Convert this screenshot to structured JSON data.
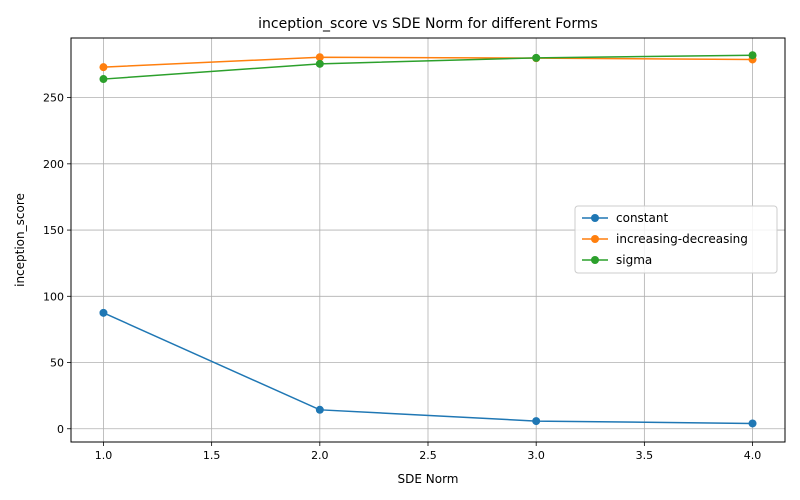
{
  "chart_data": {
    "type": "line",
    "title": "inception_score vs SDE Norm for different Forms",
    "xlabel": "SDE Norm",
    "ylabel": "inception_score",
    "x": [
      1.0,
      2.0,
      3.0,
      4.0
    ],
    "xlim": [
      0.85,
      4.15
    ],
    "ylim": [
      -10,
      295
    ],
    "xticks": [
      1.0,
      1.5,
      2.0,
      2.5,
      3.0,
      3.5,
      4.0
    ],
    "xtick_labels": [
      "1.0",
      "1.5",
      "2.0",
      "2.5",
      "3.0",
      "3.5",
      "4.0"
    ],
    "yticks": [
      0,
      50,
      100,
      150,
      200,
      250
    ],
    "ytick_labels": [
      "0",
      "50",
      "100",
      "150",
      "200",
      "250"
    ],
    "grid": true,
    "legend_position": "center-right",
    "series": [
      {
        "name": "constant",
        "color": "#1f77b4",
        "values": [
          87.5,
          14.3,
          5.8,
          4.0
        ]
      },
      {
        "name": "increasing-decreasing",
        "color": "#ff7f0e",
        "values": [
          273.0,
          280.5,
          279.8,
          278.8
        ]
      },
      {
        "name": "sigma",
        "color": "#2ca02c",
        "values": [
          264.0,
          275.5,
          280.0,
          282.0
        ]
      }
    ]
  }
}
